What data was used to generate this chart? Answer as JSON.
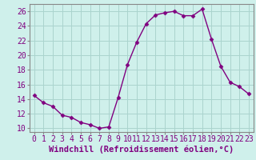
{
  "x": [
    0,
    1,
    2,
    3,
    4,
    5,
    6,
    7,
    8,
    9,
    10,
    11,
    12,
    13,
    14,
    15,
    16,
    17,
    18,
    19,
    20,
    21,
    22,
    23
  ],
  "y": [
    14.5,
    13.5,
    13.0,
    11.8,
    11.5,
    10.8,
    10.5,
    10.0,
    10.2,
    14.2,
    18.7,
    21.8,
    24.3,
    25.5,
    25.8,
    26.0,
    25.4,
    25.4,
    26.3,
    22.2,
    18.5,
    16.3,
    15.7,
    14.7
  ],
  "line_color": "#800080",
  "marker": "D",
  "markersize": 2.5,
  "linewidth": 1.0,
  "bg_color": "#cff0eb",
  "grid_color": "#aad4ce",
  "xlabel": "Windchill (Refroidissement éolien,°C)",
  "xlabel_fontsize": 7.5,
  "tick_fontsize": 7,
  "ylim": [
    9.5,
    27
  ],
  "xlim": [
    -0.5,
    23.5
  ],
  "yticks": [
    10,
    12,
    14,
    16,
    18,
    20,
    22,
    24,
    26
  ],
  "xticks": [
    0,
    1,
    2,
    3,
    4,
    5,
    6,
    7,
    8,
    9,
    10,
    11,
    12,
    13,
    14,
    15,
    16,
    17,
    18,
    19,
    20,
    21,
    22,
    23
  ],
  "spine_color": "#888888"
}
